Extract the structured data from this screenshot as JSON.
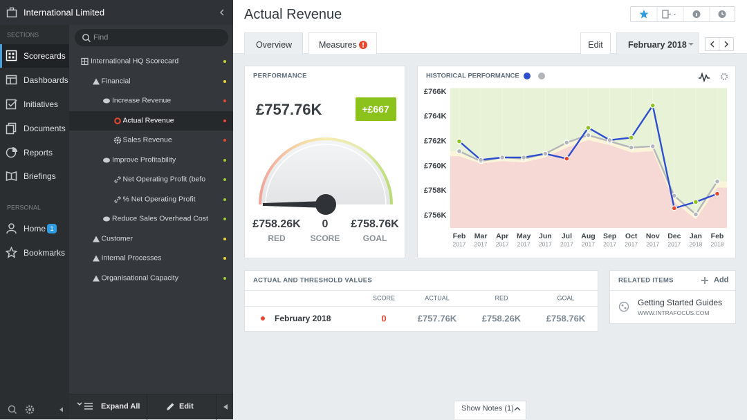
{
  "sidebar": {
    "org": "International Limited",
    "sections_label": "SECTIONS",
    "nav": [
      "Scorecards",
      "Dashboards",
      "Initiatives",
      "Documents",
      "Reports",
      "Briefings"
    ],
    "personal_label": "PERSONAL",
    "personal": [
      {
        "label": "Home",
        "badge": "1"
      },
      {
        "label": "Bookmarks"
      }
    ]
  },
  "tree": {
    "search_placeholder": "Find",
    "items": [
      {
        "label": "International HQ Scorecard",
        "status": "#c9d728"
      },
      {
        "label": "Financial",
        "status": "#f2d43a"
      },
      {
        "label": "Increase Revenue",
        "status": "#e8472f"
      },
      {
        "label": "Actual Revenue",
        "status": "#e8472f"
      },
      {
        "label": "Sales Revenue",
        "status": "#e8472f"
      },
      {
        "label": "Improve Profitability",
        "status": "#9ccc2e"
      },
      {
        "label": "Net Operating Profit (befo",
        "status": "#9ccc2e"
      },
      {
        "label": "% Net Operating Profit",
        "status": "#9ccc2e"
      },
      {
        "label": "Reduce Sales Overhead Cost",
        "status": "#9ccc2e"
      },
      {
        "label": "Customer",
        "status": "#f2d43a"
      },
      {
        "label": "Internal Processes",
        "status": "#f2d43a"
      },
      {
        "label": "Organisational Capacity",
        "status": "#9ccc2e"
      }
    ],
    "expand_all": "Expand All",
    "edit": "Edit"
  },
  "header": {
    "title": "Actual Revenue",
    "tabs": [
      "Overview",
      "Measures"
    ],
    "edit": "Edit",
    "period": "February 2018"
  },
  "performance": {
    "title": "PERFORMANCE",
    "value": "£757.76K",
    "change": "+£667",
    "red": "£758.26K",
    "red_label": "RED",
    "score": "0",
    "score_label": "SCORE",
    "goal": "£758.76K",
    "goal_label": "GOAL"
  },
  "chart_data": {
    "type": "line",
    "title": "HISTORICAL PERFORMANCE",
    "categories": [
      "Feb",
      "Mar",
      "Apr",
      "May",
      "Jun",
      "Jul",
      "Aug",
      "Sep",
      "Oct",
      "Nov",
      "Dec",
      "Jan",
      "Feb"
    ],
    "category_years": [
      "2017",
      "2017",
      "2017",
      "2017",
      "2017",
      "2017",
      "2017",
      "2017",
      "2017",
      "2017",
      "2017",
      "2018",
      "2018"
    ],
    "plot_color": "#e8f2d6",
    "series": [
      {
        "kind": "line",
        "color": "#2d4fcf",
        "values": [
          762000,
          760500,
          760700,
          760700,
          761000,
          760600,
          763100,
          762100,
          762300,
          764900,
          756600,
          757100,
          757760
        ],
        "point_colors": [
          "#8fc31f",
          "#b3b6bb",
          "#b3b6bb",
          "#b3b6bb",
          "#b3b6bb",
          "#e8472f",
          "#8fc31f",
          "#b3b6bb",
          "#8fc31f",
          "#8fc31f",
          "#e8472f",
          "#8fc31f",
          "#e8472f"
        ]
      },
      {
        "kind": "line",
        "color": "#b3b6bb",
        "area_color": "#faf5d8",
        "values": [
          761200,
          760400,
          760700,
          760600,
          761000,
          761900,
          762500,
          762000,
          761500,
          761600,
          757600,
          756100,
          758760
        ]
      },
      {
        "kind": "area",
        "color": "#f6d8d5",
        "values": [
          760800,
          760200,
          760400,
          760300,
          760700,
          761500,
          762100,
          761700,
          761100,
          761200,
          757100,
          755700,
          758260
        ]
      }
    ],
    "ylim": [
      755000,
      766300
    ],
    "yticks": [
      {
        "value": 756000,
        "label": "£756K"
      },
      {
        "value": 758000,
        "label": "£758K"
      },
      {
        "value": 760000,
        "label": "£760K"
      },
      {
        "value": 762000,
        "label": "£762K"
      },
      {
        "value": 764000,
        "label": "£764K"
      },
      {
        "value": 766000,
        "label": "£766K"
      }
    ]
  },
  "table": {
    "title": "ACTUAL AND THRESHOLD VALUES",
    "columns": [
      "SCORE",
      "ACTUAL",
      "RED",
      "GOAL"
    ],
    "rows": [
      [
        "February 2018",
        "0",
        "£757.76K",
        "£758.26K",
        "£758.76K"
      ]
    ]
  },
  "related": {
    "title": "RELATED ITEMS",
    "add": "Add",
    "items": [
      {
        "title": "Getting Started Guides",
        "url": "WWW.INTRAFOCUS.COM"
      }
    ]
  },
  "footer": {
    "show_notes": "Show Notes (1)"
  }
}
